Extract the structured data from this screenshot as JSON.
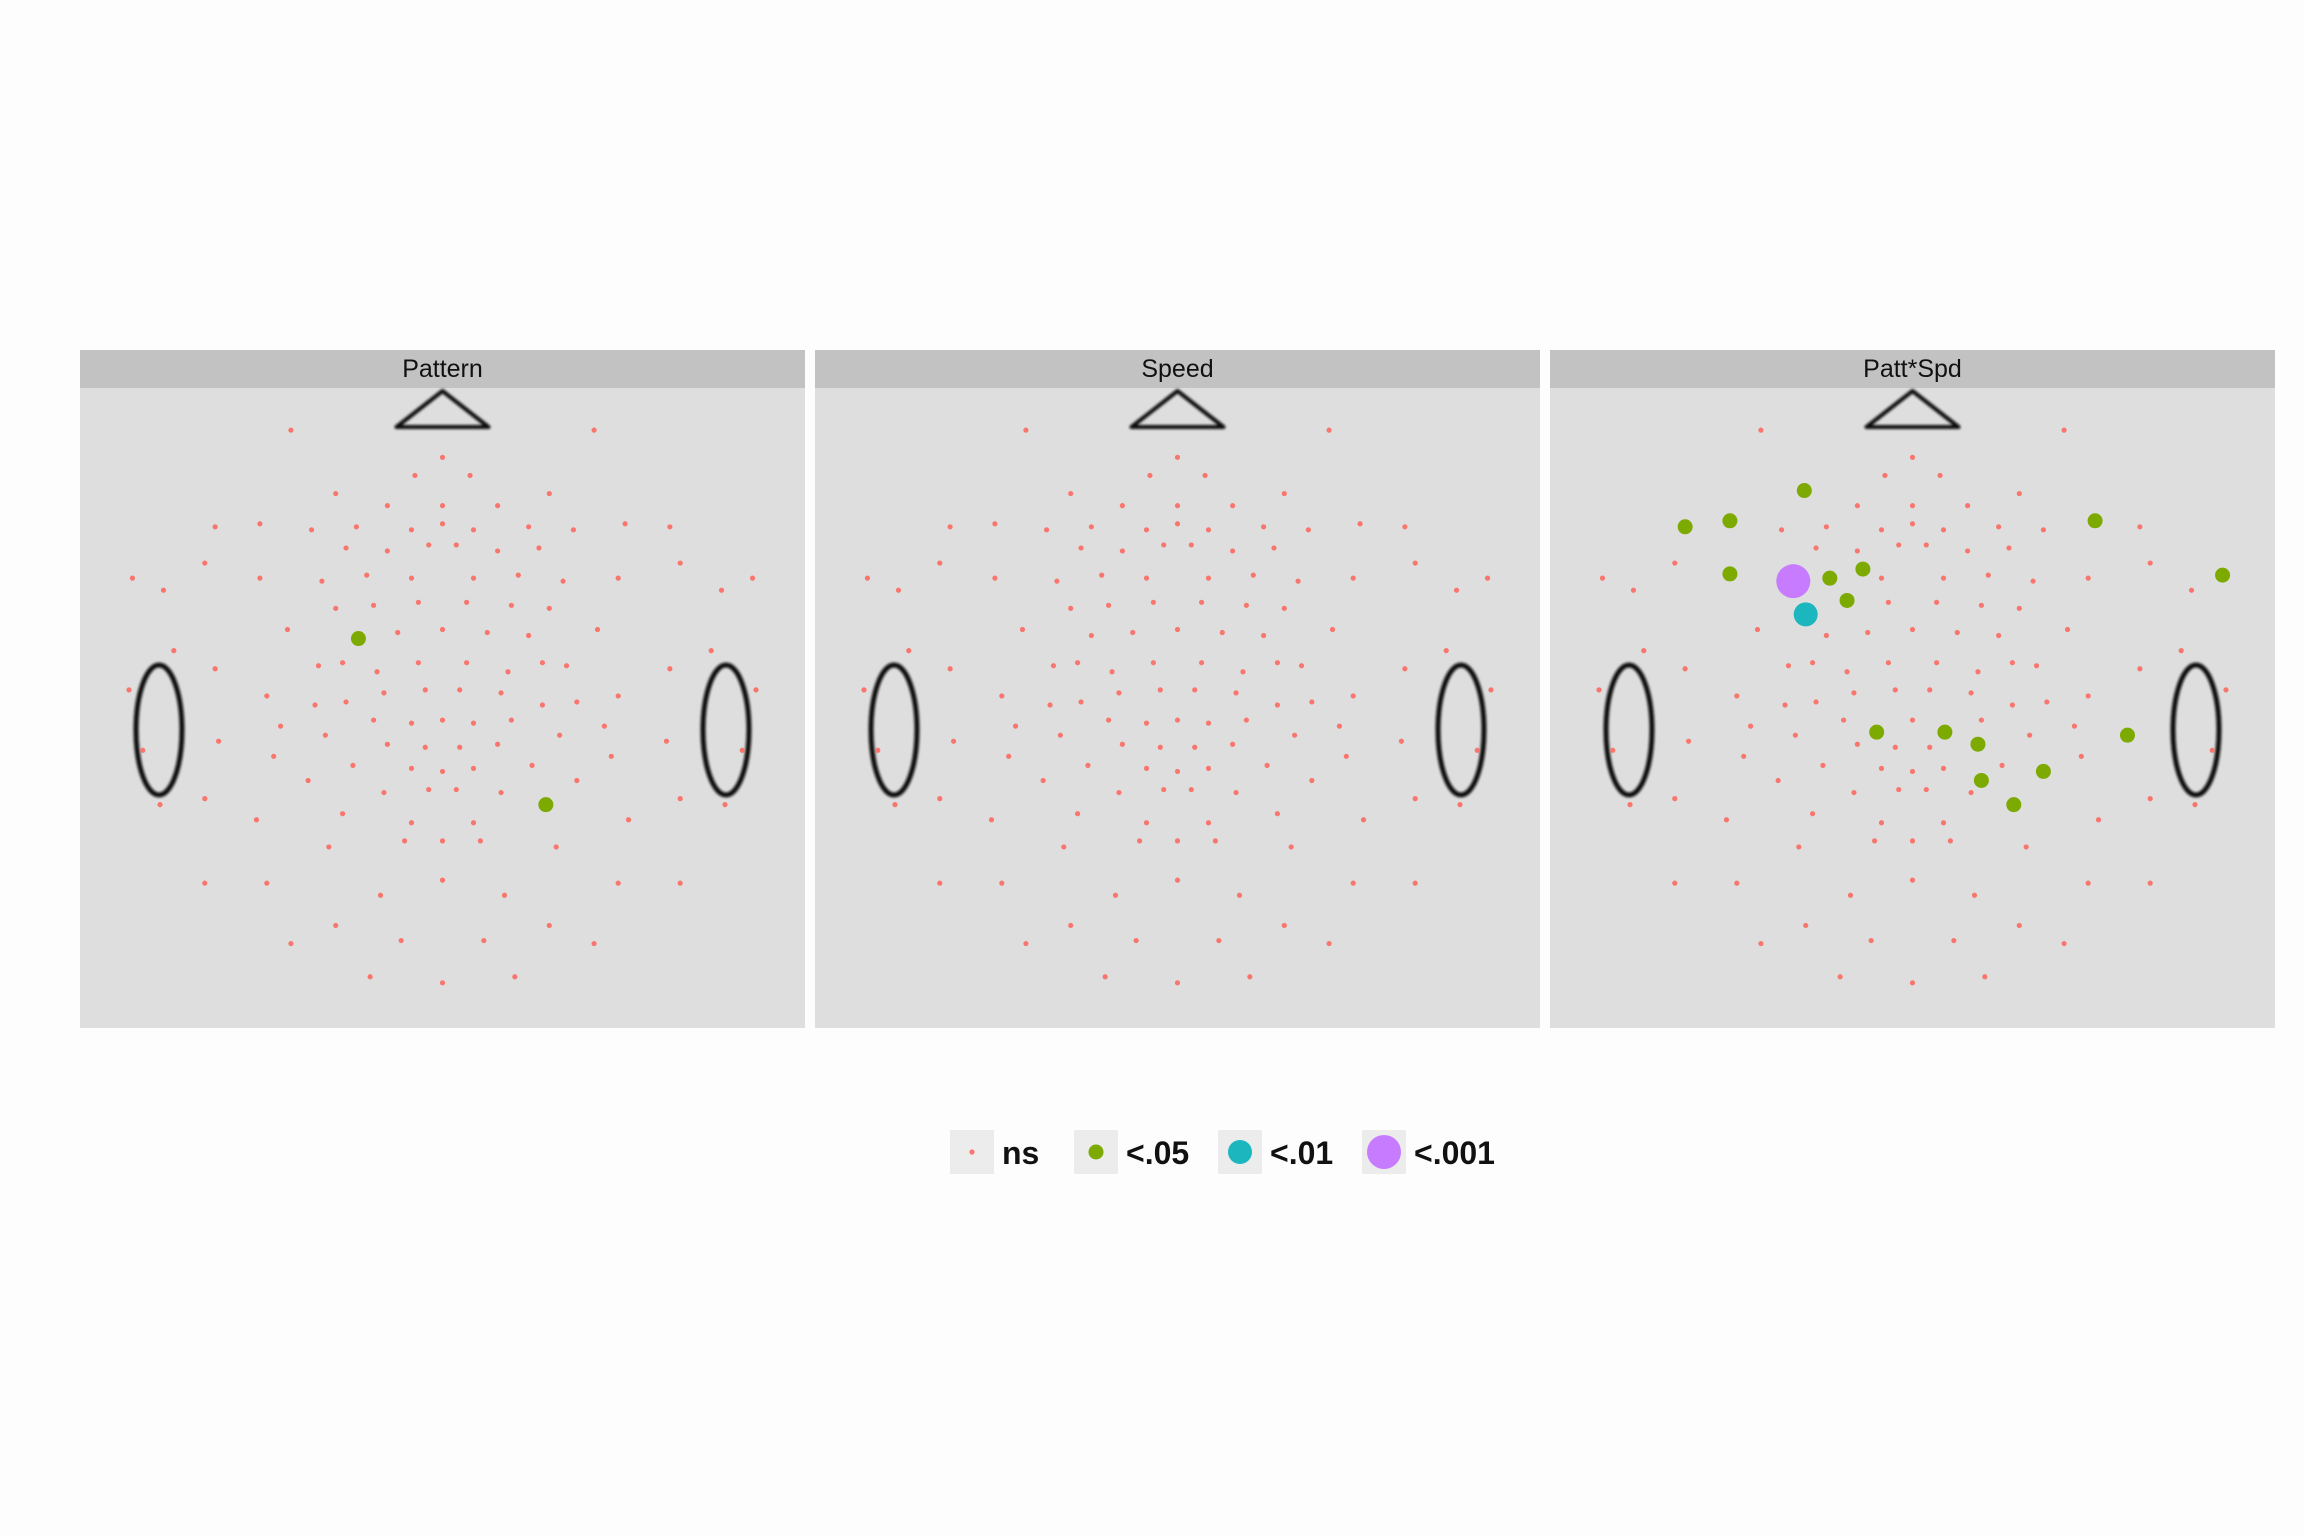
{
  "chart_data": {
    "type": "scatter",
    "description_of_axes": "",
    "xlim": [
      0,
      1
    ],
    "ylim": [
      0,
      1
    ],
    "grid": false,
    "legend_position": "bottom",
    "colors": {
      "ns": "#f8766d",
      "p05": "#7caa00",
      "p01": "#1cb6be",
      "p001": "#c77cff",
      "panel_bg": "#dedede",
      "strip_bg": "#c2c2c2",
      "head_outline": "#111111"
    },
    "legend": [
      {
        "key": "ns",
        "label": "ns"
      },
      {
        "key": "p05",
        "label": "<.05"
      },
      {
        "key": "p01",
        "label": "<.01"
      },
      {
        "key": "p001",
        "label": "<.001"
      }
    ],
    "electrodes": [
      [
        0.28,
        0.04
      ],
      [
        0.72,
        0.04
      ],
      [
        0.5,
        0.085
      ],
      [
        0.46,
        0.115
      ],
      [
        0.54,
        0.115
      ],
      [
        0.345,
        0.145
      ],
      [
        0.655,
        0.145
      ],
      [
        0.42,
        0.165
      ],
      [
        0.5,
        0.165
      ],
      [
        0.58,
        0.165
      ],
      [
        0.17,
        0.2
      ],
      [
        0.235,
        0.195
      ],
      [
        0.31,
        0.205
      ],
      [
        0.375,
        0.2
      ],
      [
        0.455,
        0.205
      ],
      [
        0.5,
        0.195
      ],
      [
        0.545,
        0.205
      ],
      [
        0.625,
        0.2
      ],
      [
        0.69,
        0.205
      ],
      [
        0.765,
        0.195
      ],
      [
        0.83,
        0.2
      ],
      [
        0.36,
        0.235
      ],
      [
        0.42,
        0.24
      ],
      [
        0.48,
        0.23
      ],
      [
        0.52,
        0.23
      ],
      [
        0.58,
        0.24
      ],
      [
        0.64,
        0.235
      ],
      [
        0.155,
        0.26
      ],
      [
        0.235,
        0.285
      ],
      [
        0.755,
        0.285
      ],
      [
        0.845,
        0.26
      ],
      [
        0.05,
        0.285
      ],
      [
        0.095,
        0.305
      ],
      [
        0.325,
        0.29
      ],
      [
        0.39,
        0.28
      ],
      [
        0.455,
        0.285
      ],
      [
        0.545,
        0.285
      ],
      [
        0.61,
        0.28
      ],
      [
        0.675,
        0.29
      ],
      [
        0.905,
        0.305
      ],
      [
        0.95,
        0.285
      ],
      [
        0.345,
        0.335
      ],
      [
        0.4,
        0.33
      ],
      [
        0.465,
        0.325
      ],
      [
        0.535,
        0.325
      ],
      [
        0.6,
        0.33
      ],
      [
        0.655,
        0.335
      ],
      [
        0.275,
        0.37
      ],
      [
        0.725,
        0.37
      ],
      [
        0.11,
        0.405
      ],
      [
        0.89,
        0.405
      ],
      [
        0.375,
        0.38
      ],
      [
        0.435,
        0.375
      ],
      [
        0.5,
        0.37
      ],
      [
        0.565,
        0.375
      ],
      [
        0.625,
        0.38
      ],
      [
        0.17,
        0.435
      ],
      [
        0.32,
        0.43
      ],
      [
        0.83,
        0.435
      ],
      [
        0.68,
        0.43
      ],
      [
        0.355,
        0.425
      ],
      [
        0.405,
        0.44
      ],
      [
        0.465,
        0.425
      ],
      [
        0.535,
        0.425
      ],
      [
        0.595,
        0.44
      ],
      [
        0.645,
        0.425
      ],
      [
        0.045,
        0.47
      ],
      [
        0.955,
        0.47
      ],
      [
        0.245,
        0.48
      ],
      [
        0.755,
        0.48
      ],
      [
        0.415,
        0.475
      ],
      [
        0.475,
        0.47
      ],
      [
        0.525,
        0.47
      ],
      [
        0.585,
        0.475
      ],
      [
        0.315,
        0.495
      ],
      [
        0.36,
        0.49
      ],
      [
        0.645,
        0.495
      ],
      [
        0.695,
        0.49
      ],
      [
        0.265,
        0.53
      ],
      [
        0.735,
        0.53
      ],
      [
        0.4,
        0.52
      ],
      [
        0.455,
        0.525
      ],
      [
        0.5,
        0.52
      ],
      [
        0.545,
        0.525
      ],
      [
        0.6,
        0.52
      ],
      [
        0.175,
        0.555
      ],
      [
        0.33,
        0.545
      ],
      [
        0.67,
        0.545
      ],
      [
        0.825,
        0.555
      ],
      [
        0.42,
        0.56
      ],
      [
        0.475,
        0.565
      ],
      [
        0.525,
        0.565
      ],
      [
        0.58,
        0.56
      ],
      [
        0.065,
        0.57
      ],
      [
        0.935,
        0.57
      ],
      [
        0.255,
        0.58
      ],
      [
        0.745,
        0.58
      ],
      [
        0.37,
        0.595
      ],
      [
        0.455,
        0.6
      ],
      [
        0.5,
        0.605
      ],
      [
        0.545,
        0.6
      ],
      [
        0.63,
        0.595
      ],
      [
        0.305,
        0.62
      ],
      [
        0.695,
        0.62
      ],
      [
        0.155,
        0.65
      ],
      [
        0.845,
        0.65
      ],
      [
        0.415,
        0.64
      ],
      [
        0.48,
        0.635
      ],
      [
        0.52,
        0.635
      ],
      [
        0.585,
        0.64
      ],
      [
        0.09,
        0.66
      ],
      [
        0.91,
        0.66
      ],
      [
        0.23,
        0.685
      ],
      [
        0.77,
        0.685
      ],
      [
        0.355,
        0.675
      ],
      [
        0.645,
        0.675
      ],
      [
        0.455,
        0.69
      ],
      [
        0.545,
        0.69
      ],
      [
        0.335,
        0.73
      ],
      [
        0.665,
        0.73
      ],
      [
        0.445,
        0.72
      ],
      [
        0.555,
        0.72
      ],
      [
        0.5,
        0.72
      ],
      [
        0.155,
        0.79
      ],
      [
        0.245,
        0.79
      ],
      [
        0.5,
        0.785
      ],
      [
        0.755,
        0.79
      ],
      [
        0.845,
        0.79
      ],
      [
        0.41,
        0.81
      ],
      [
        0.59,
        0.81
      ],
      [
        0.345,
        0.86
      ],
      [
        0.655,
        0.86
      ],
      [
        0.28,
        0.89
      ],
      [
        0.72,
        0.89
      ],
      [
        0.44,
        0.885
      ],
      [
        0.56,
        0.885
      ],
      [
        0.395,
        0.945
      ],
      [
        0.5,
        0.955
      ],
      [
        0.605,
        0.945
      ]
    ],
    "panels": [
      {
        "title": "Pattern",
        "significant": [
          {
            "x": 0.378,
            "y": 0.385,
            "level": "p05"
          },
          {
            "x": 0.65,
            "y": 0.66,
            "level": "p05"
          }
        ]
      },
      {
        "title": "Speed",
        "significant": []
      },
      {
        "title": "Patt*Spd",
        "significant": [
          {
            "x": 0.343,
            "y": 0.14,
            "level": "p05"
          },
          {
            "x": 0.17,
            "y": 0.2,
            "level": "p05"
          },
          {
            "x": 0.235,
            "y": 0.19,
            "level": "p05"
          },
          {
            "x": 0.235,
            "y": 0.278,
            "level": "p05"
          },
          {
            "x": 0.38,
            "y": 0.285,
            "level": "p05"
          },
          {
            "x": 0.428,
            "y": 0.27,
            "level": "p05"
          },
          {
            "x": 0.405,
            "y": 0.322,
            "level": "p05"
          },
          {
            "x": 0.765,
            "y": 0.19,
            "level": "p05"
          },
          {
            "x": 0.95,
            "y": 0.28,
            "level": "p05"
          },
          {
            "x": 0.448,
            "y": 0.54,
            "level": "p05"
          },
          {
            "x": 0.547,
            "y": 0.54,
            "level": "p05"
          },
          {
            "x": 0.595,
            "y": 0.56,
            "level": "p05"
          },
          {
            "x": 0.6,
            "y": 0.62,
            "level": "p05"
          },
          {
            "x": 0.69,
            "y": 0.605,
            "level": "p05"
          },
          {
            "x": 0.647,
            "y": 0.66,
            "level": "p05"
          },
          {
            "x": 0.812,
            "y": 0.545,
            "level": "p05"
          },
          {
            "x": 0.327,
            "y": 0.29,
            "level": "p001"
          },
          {
            "x": 0.345,
            "y": 0.345,
            "level": "p01"
          }
        ]
      }
    ]
  }
}
